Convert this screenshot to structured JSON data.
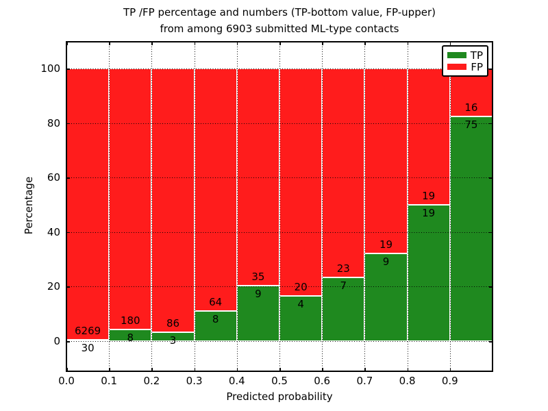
{
  "title": {
    "line1": "TP /FP percentage and numbers (TP-bottom value, FP-upper)",
    "line2": "from among 6903 submitted ML-type contacts"
  },
  "axes": {
    "xlabel": "Predicted probability",
    "ylabel": "Percentage",
    "xtick_labels": [
      "0.0",
      "0.1",
      "0.2",
      "0.3",
      "0.4",
      "0.5",
      "0.6",
      "0.7",
      "0.8",
      "0.9"
    ],
    "ytick_labels": [
      "0",
      "20",
      "40",
      "60",
      "80",
      "100"
    ]
  },
  "legend": {
    "position": "upper-right",
    "items": [
      {
        "label": "TP",
        "color": "#1f891f"
      },
      {
        "label": "FP",
        "color": "#ff1c1c"
      }
    ]
  },
  "chart_data": {
    "type": "bar",
    "subtype": "stacked-100percent-histogram",
    "title": "TP /FP percentage and numbers (TP-bottom value, FP-upper) from among 6903 submitted ML-type contacts",
    "xlabel": "Predicted probability",
    "ylabel": "Percentage",
    "xlim": [
      0.0,
      1.0
    ],
    "ylim": [
      -11,
      110
    ],
    "xticks": [
      0.0,
      0.1,
      0.2,
      0.3,
      0.4,
      0.5,
      0.6,
      0.7,
      0.8,
      0.9
    ],
    "yticks": [
      0,
      20,
      40,
      60,
      80,
      100
    ],
    "grid": true,
    "grid_style": "dotted",
    "legend_position": "upper right",
    "bin_edges": [
      0.0,
      0.1,
      0.2,
      0.3,
      0.4,
      0.5,
      0.6,
      0.7,
      0.8,
      0.9,
      1.0
    ],
    "series": [
      {
        "name": "TP",
        "color": "#1f891f",
        "stack": "bottom",
        "counts": [
          30,
          8,
          3,
          8,
          9,
          4,
          7,
          9,
          19,
          75
        ]
      },
      {
        "name": "FP",
        "color": "#ff1c1c",
        "stack": "top",
        "counts": [
          6269,
          180,
          86,
          64,
          35,
          20,
          23,
          19,
          19,
          16
        ]
      }
    ],
    "tp_percent_per_bin": [
      0.48,
      4.26,
      3.37,
      11.11,
      20.45,
      16.67,
      23.33,
      32.14,
      50.0,
      82.42
    ],
    "total_contacts": 6903
  }
}
